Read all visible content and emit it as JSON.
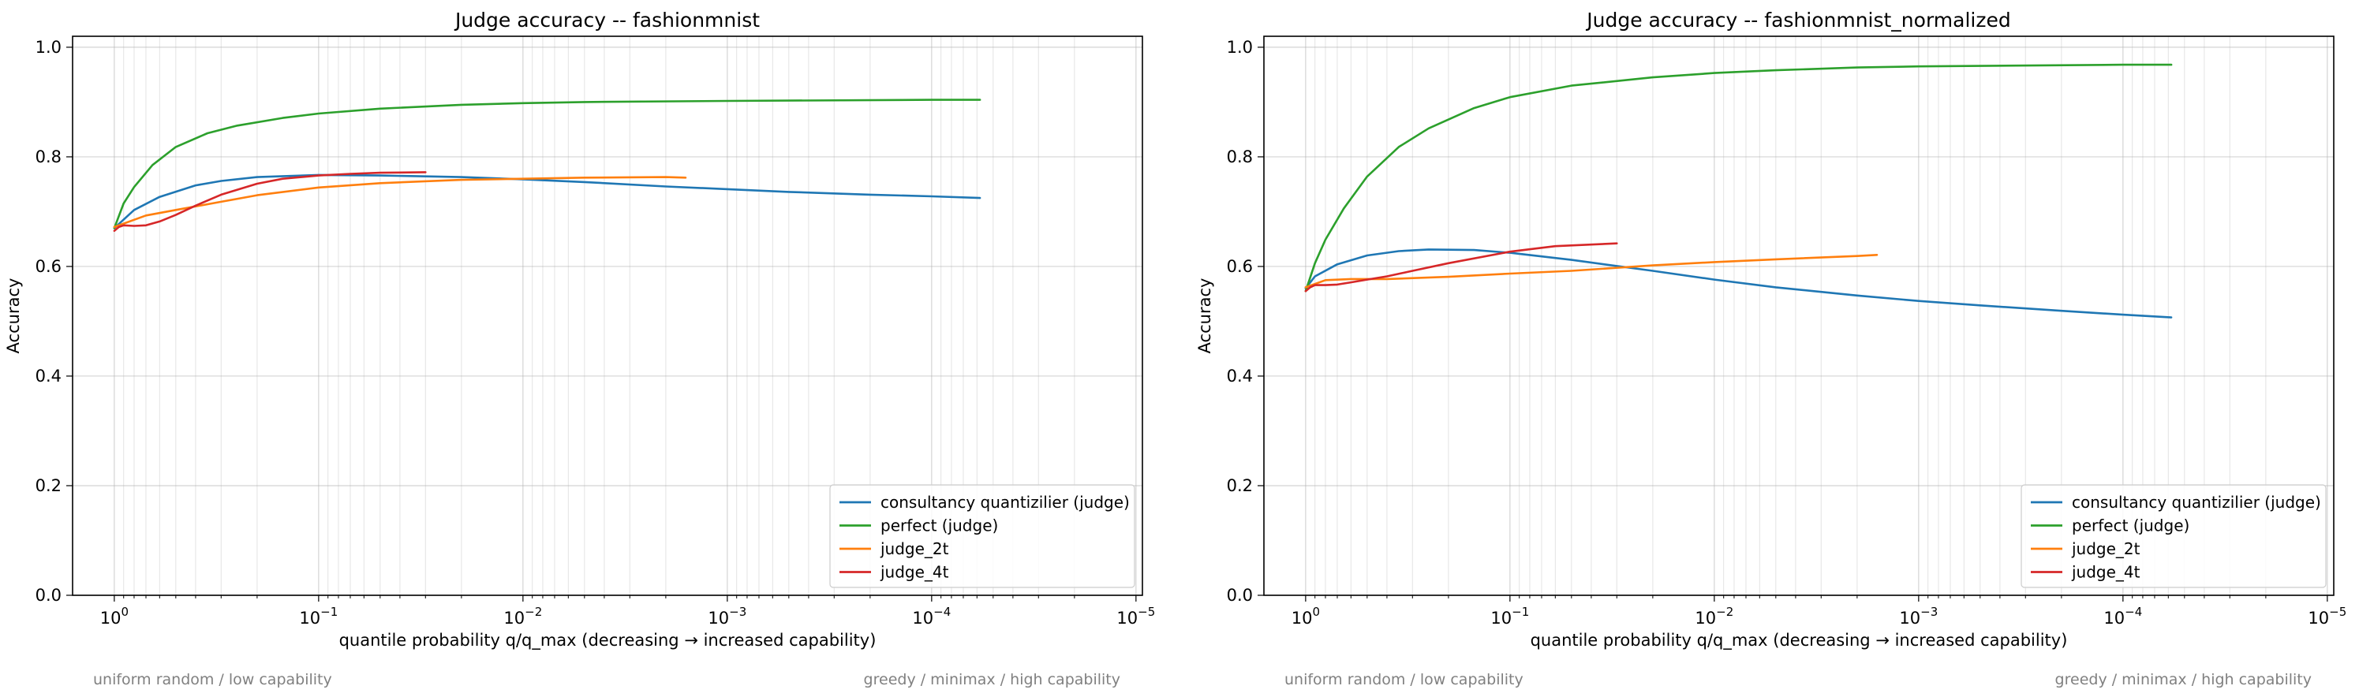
{
  "chart_data": [
    {
      "type": "line",
      "title": "Judge accuracy -- fashionmnist",
      "xlabel": "quantile probability q/q_max  (decreasing → increased capability)",
      "ylabel": "Accuracy",
      "x_scale": "log",
      "x_reversed": true,
      "xlim": [
        1.6,
        9.3e-06
      ],
      "ylim": [
        0.0,
        1.02
      ],
      "xtick_values": [
        1,
        0.1,
        0.01,
        0.001,
        0.0001,
        1e-05
      ],
      "xtick_labels": [
        "10^0",
        "10^-1",
        "10^-2",
        "10^-3",
        "10^-4",
        "10^-5"
      ],
      "ytick_values": [
        0.0,
        0.2,
        0.4,
        0.6,
        0.8,
        1.0
      ],
      "ytick_labels": [
        "0.0",
        "0.2",
        "0.4",
        "0.6",
        "0.8",
        "1.0"
      ],
      "grid": true,
      "legend_position": "lower-right",
      "annotation_left": "uniform random / low capability",
      "annotation_right": "greedy / minimax / high capability",
      "series": [
        {
          "name": "consultancy quantizilier (judge)",
          "color": "#1f77b4",
          "x": [
            1.0,
            0.8,
            0.6,
            0.4,
            0.3,
            0.2,
            0.1,
            0.05,
            0.02,
            0.01,
            0.005,
            0.002,
            0.001,
            0.0005,
            0.0002,
            0.0001,
            5.8e-05
          ],
          "y": [
            0.67,
            0.703,
            0.727,
            0.748,
            0.756,
            0.763,
            0.767,
            0.766,
            0.763,
            0.759,
            0.754,
            0.746,
            0.741,
            0.736,
            0.731,
            0.728,
            0.725
          ]
        },
        {
          "name": "perfect (judge)",
          "color": "#2ca02c",
          "x": [
            1.0,
            0.9,
            0.8,
            0.65,
            0.5,
            0.35,
            0.25,
            0.15,
            0.1,
            0.05,
            0.02,
            0.01,
            0.005,
            0.001,
            0.0001,
            5.8e-05
          ],
          "y": [
            0.67,
            0.715,
            0.745,
            0.785,
            0.818,
            0.843,
            0.857,
            0.871,
            0.879,
            0.888,
            0.895,
            0.898,
            0.9,
            0.902,
            0.904,
            0.904
          ]
        },
        {
          "name": "judge_2t",
          "color": "#ff7f0e",
          "x": [
            1.0,
            0.7,
            0.5,
            0.3,
            0.2,
            0.1,
            0.05,
            0.02,
            0.01,
            0.005,
            0.002,
            0.0016
          ],
          "y": [
            0.672,
            0.693,
            0.703,
            0.718,
            0.73,
            0.744,
            0.752,
            0.758,
            0.76,
            0.762,
            0.763,
            0.762
          ]
        },
        {
          "name": "judge_4t",
          "color": "#d62728",
          "x": [
            1.0,
            0.95,
            0.9,
            0.8,
            0.7,
            0.6,
            0.5,
            0.4,
            0.3,
            0.2,
            0.15,
            0.1,
            0.07,
            0.05,
            0.03
          ],
          "y": [
            0.665,
            0.672,
            0.675,
            0.674,
            0.675,
            0.682,
            0.694,
            0.711,
            0.731,
            0.751,
            0.76,
            0.766,
            0.769,
            0.771,
            0.772
          ]
        }
      ]
    },
    {
      "type": "line",
      "title": "Judge accuracy -- fashionmnist_normalized",
      "xlabel": "quantile probability q/q_max  (decreasing → increased capability)",
      "ylabel": "Accuracy",
      "x_scale": "log",
      "x_reversed": true,
      "xlim": [
        1.6,
        9.3e-06
      ],
      "ylim": [
        0.0,
        1.02
      ],
      "xtick_values": [
        1,
        0.1,
        0.01,
        0.001,
        0.0001,
        1e-05
      ],
      "xtick_labels": [
        "10^0",
        "10^-1",
        "10^-2",
        "10^-3",
        "10^-4",
        "10^-5"
      ],
      "ytick_values": [
        0.0,
        0.2,
        0.4,
        0.6,
        0.8,
        1.0
      ],
      "ytick_labels": [
        "0.0",
        "0.2",
        "0.4",
        "0.6",
        "0.8",
        "1.0"
      ],
      "grid": true,
      "legend_position": "lower-right",
      "annotation_left": "uniform random / low capability",
      "annotation_right": "greedy / minimax / high capability",
      "series": [
        {
          "name": "consultancy quantizilier (judge)",
          "color": "#1f77b4",
          "x": [
            1.0,
            0.9,
            0.7,
            0.5,
            0.35,
            0.25,
            0.15,
            0.1,
            0.05,
            0.02,
            0.01,
            0.005,
            0.002,
            0.001,
            0.0005,
            0.0002,
            0.0001,
            5.8e-05
          ],
          "y": [
            0.56,
            0.582,
            0.604,
            0.62,
            0.628,
            0.631,
            0.63,
            0.625,
            0.612,
            0.592,
            0.576,
            0.562,
            0.547,
            0.537,
            0.529,
            0.519,
            0.512,
            0.507
          ]
        },
        {
          "name": "perfect (judge)",
          "color": "#2ca02c",
          "x": [
            1.0,
            0.9,
            0.8,
            0.65,
            0.5,
            0.35,
            0.25,
            0.15,
            0.1,
            0.05,
            0.02,
            0.01,
            0.005,
            0.002,
            0.001,
            0.0001,
            5.8e-05
          ],
          "y": [
            0.555,
            0.606,
            0.649,
            0.706,
            0.764,
            0.818,
            0.852,
            0.889,
            0.909,
            0.93,
            0.945,
            0.953,
            0.958,
            0.963,
            0.965,
            0.968,
            0.968
          ]
        },
        {
          "name": "judge_2t",
          "color": "#ff7f0e",
          "x": [
            1.0,
            0.8,
            0.6,
            0.4,
            0.2,
            0.1,
            0.05,
            0.02,
            0.01,
            0.005,
            0.002,
            0.0016
          ],
          "y": [
            0.562,
            0.575,
            0.577,
            0.577,
            0.581,
            0.587,
            0.592,
            0.602,
            0.608,
            0.613,
            0.619,
            0.621
          ]
        },
        {
          "name": "judge_4t",
          "color": "#d62728",
          "x": [
            1.0,
            0.95,
            0.9,
            0.8,
            0.7,
            0.6,
            0.5,
            0.4,
            0.3,
            0.2,
            0.1,
            0.06,
            0.03
          ],
          "y": [
            0.555,
            0.562,
            0.566,
            0.566,
            0.567,
            0.571,
            0.576,
            0.582,
            0.592,
            0.606,
            0.627,
            0.637,
            0.642
          ]
        }
      ]
    }
  ]
}
